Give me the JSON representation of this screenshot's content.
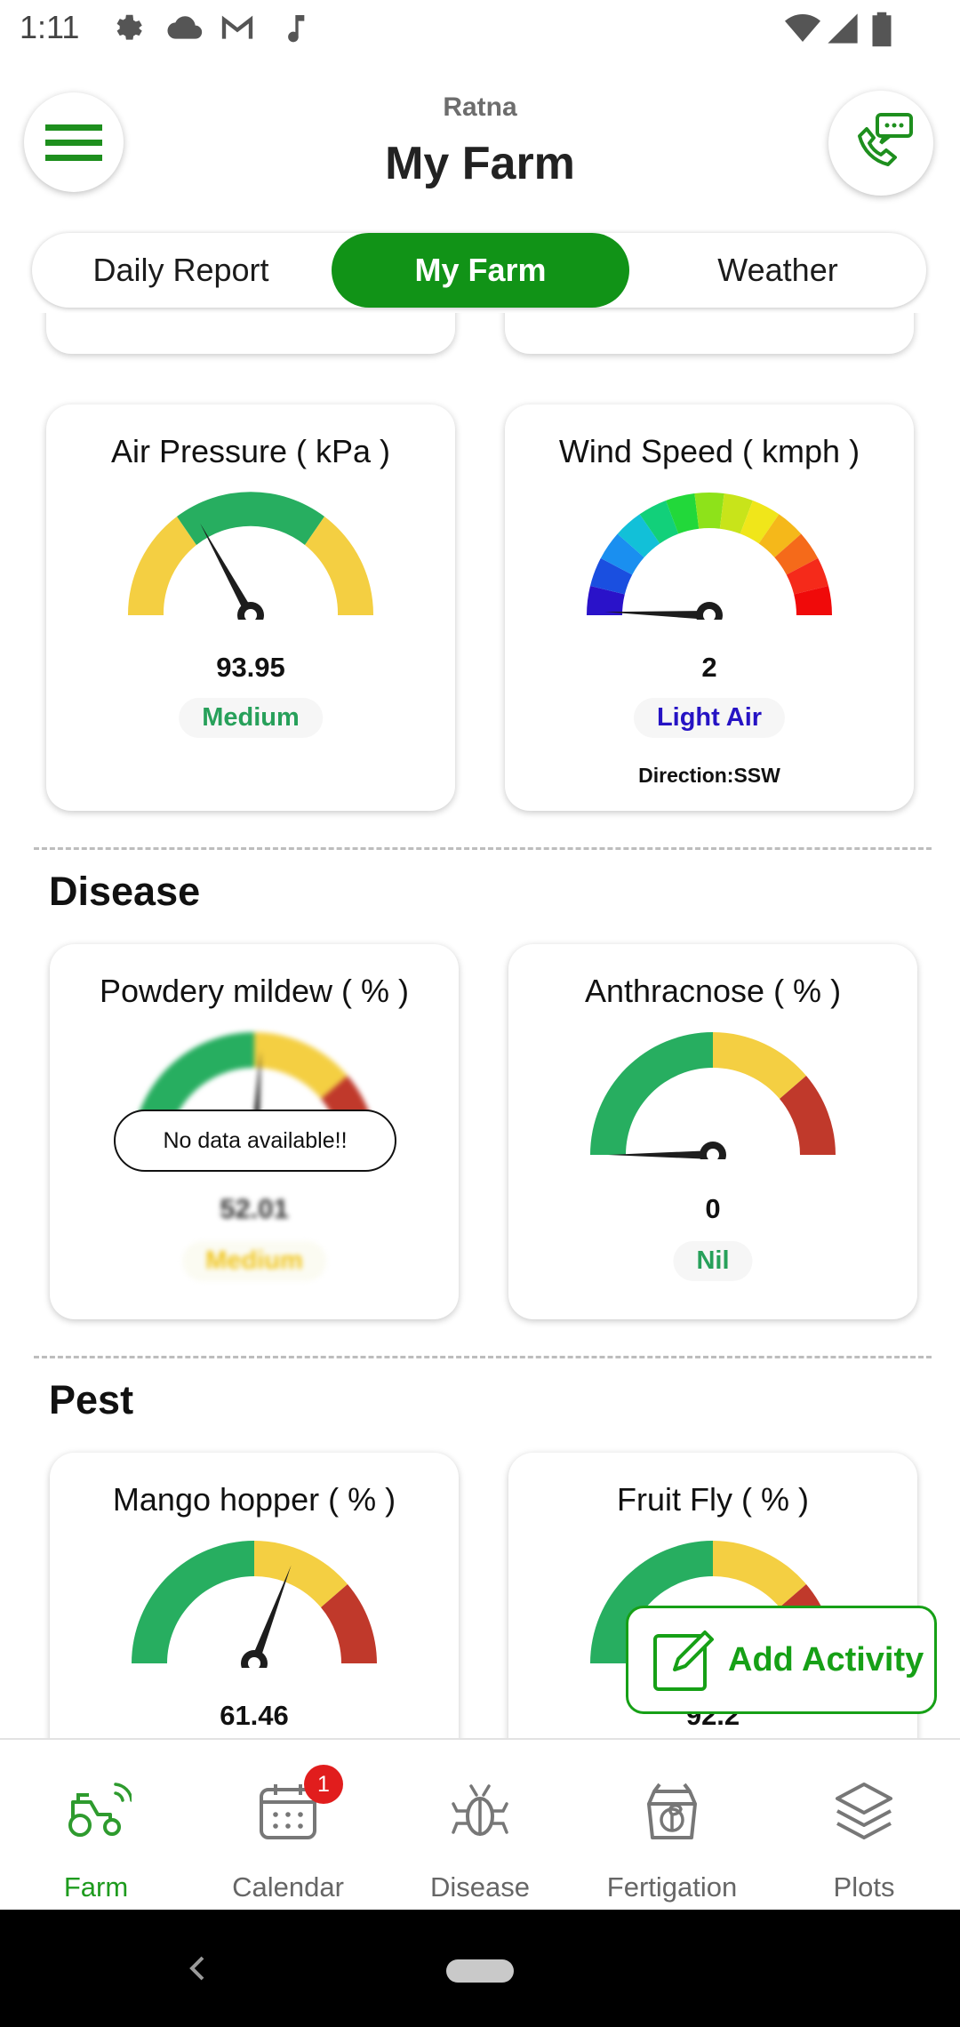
{
  "status_bar": {
    "time": "1:11",
    "left_icons": [
      "gear-icon",
      "cloud-icon",
      "gmail-icon",
      "music-note-icon"
    ],
    "right_icons": [
      "wifi-icon",
      "cell-signal-icon",
      "battery-icon"
    ]
  },
  "header": {
    "subtitle": "Ratna",
    "title": "My Farm",
    "menu_icon": "hamburger-menu-icon",
    "support_icon": "phone-chat-icon"
  },
  "tabs": [
    {
      "label": "Daily Report",
      "active": false
    },
    {
      "label": "My Farm",
      "active": true
    },
    {
      "label": "Weather",
      "active": false
    }
  ],
  "weather_cards": [
    {
      "title": "Air Pressure ( kPa )",
      "value": "93.95",
      "status": "Medium",
      "status_color": "#27a05a",
      "gauge_type": "yellow-green-yellow",
      "needle_fraction": 0.34
    },
    {
      "title": "Wind Speed ( kmph )",
      "value": "2",
      "status": "Light Air",
      "status_color": "#2613c4",
      "direction": "Direction:SSW",
      "gauge_type": "rainbow",
      "needle_fraction": 0.01
    }
  ],
  "disease": {
    "heading": "Disease",
    "cards": [
      {
        "title": "Powdery mildew ( % )",
        "value": "52.01",
        "status": "Medium",
        "status_color": "#f0c419",
        "no_data_text": "No data available!!",
        "gauge_type": "green-yellow-red",
        "needle_fraction": 0.52,
        "blurred": true
      },
      {
        "title": "Anthracnose ( % )",
        "value": "0",
        "status": "Nil",
        "status_color": "#27a05a",
        "gauge_type": "green-yellow-red",
        "needle_fraction": 0.0,
        "blurred": false
      }
    ]
  },
  "pest": {
    "heading": "Pest",
    "cards": [
      {
        "title": "Mango hopper ( % )",
        "value": "61.46",
        "gauge_type": "green-yellow-red",
        "needle_fraction": 0.6146
      },
      {
        "title": "Fruit Fly ( % )",
        "value": "92.2",
        "gauge_type": "green-yellow-red",
        "needle_fraction": 0.922
      }
    ]
  },
  "fab": {
    "label": "Add Activity",
    "icon": "edit-note-icon"
  },
  "bottom_nav": [
    {
      "label": "Farm",
      "icon": "tractor-icon",
      "active": true
    },
    {
      "label": "Calendar",
      "icon": "calendar-icon",
      "active": false,
      "badge": "1"
    },
    {
      "label": "Disease",
      "icon": "bug-icon",
      "active": false
    },
    {
      "label": "Fertigation",
      "icon": "fertilizer-bag-icon",
      "active": false
    },
    {
      "label": "Plots",
      "icon": "layers-icon",
      "active": false
    }
  ],
  "colors": {
    "brand_green": "#119317",
    "gauge_green": "#27ae60",
    "gauge_yellow": "#f4cf42",
    "gauge_red": "#c0392b"
  }
}
